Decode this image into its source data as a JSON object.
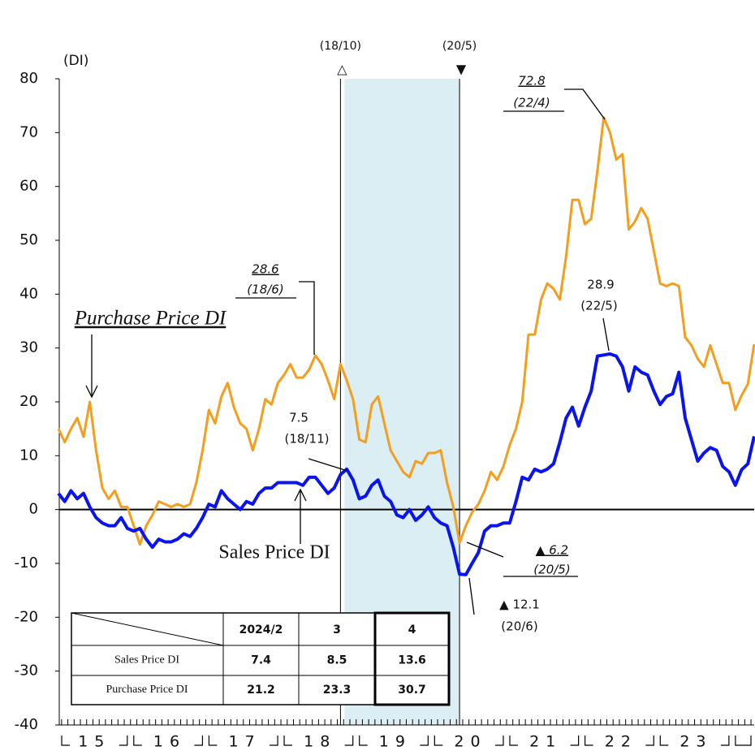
{
  "chart_data": {
    "type": "line",
    "y_unit": "(DI)",
    "categories": [
      null,
      null,
      null,
      null,
      null,
      null,
      "15",
      null,
      null,
      null,
      null,
      null,
      null,
      null,
      null,
      null,
      null,
      null,
      "16",
      null,
      null,
      null,
      null,
      null,
      null,
      null,
      null,
      null,
      null,
      null,
      "17",
      null,
      null,
      null,
      null,
      null,
      null,
      null,
      null,
      null,
      null,
      null,
      "18",
      null,
      null,
      null,
      null,
      null,
      null,
      null,
      null,
      null,
      null,
      null,
      "19",
      null,
      null,
      null,
      null,
      null,
      null,
      null,
      null,
      null,
      null,
      null,
      "20",
      null,
      null,
      null,
      null,
      null,
      null,
      null,
      null,
      null,
      null,
      null,
      "21",
      null,
      null,
      null,
      null,
      null,
      null,
      null,
      null,
      null,
      null,
      null,
      "22",
      null,
      null,
      null,
      null,
      null,
      null,
      null,
      null,
      null,
      null,
      null,
      "23",
      null,
      null,
      null,
      null,
      null,
      null,
      null,
      null,
      null
    ],
    "series": [
      {
        "name": "Purchase Price DI",
        "color": "#f59d1c",
        "values": [
          15,
          12.5,
          15,
          17,
          13.5,
          20,
          11,
          4,
          2,
          3.5,
          0.5,
          0.5,
          -3,
          -6.5,
          -3,
          -1,
          1.5,
          1,
          0.5,
          1,
          0.5,
          1,
          5,
          11,
          18.5,
          16,
          21,
          23.5,
          19,
          16,
          15,
          11,
          15,
          20.5,
          19.5,
          23.5,
          25,
          27,
          24.5,
          24.5,
          26,
          28.6,
          27,
          24,
          20.5,
          27,
          24,
          20.5,
          13,
          12.5,
          19.5,
          21,
          16,
          11,
          9,
          7,
          6,
          9,
          8.5,
          10.5,
          10.5,
          11,
          5,
          0.5,
          -6.2,
          -3,
          -0.5,
          1,
          3.5,
          7,
          5.5,
          8,
          12,
          15,
          20,
          32.5,
          32.5,
          39,
          42,
          41,
          39,
          47,
          57.5,
          57.5,
          53,
          54,
          63,
          72.8,
          70,
          65,
          66,
          52,
          53.5,
          56,
          54,
          48,
          42,
          41.5,
          42,
          41.5,
          32,
          30.5,
          28,
          26.5,
          30.5,
          27,
          23.5,
          23.5,
          18.5,
          21.2,
          23.3,
          30.7
        ]
      },
      {
        "name": "Sales Price DI",
        "color": "#0a14f0",
        "values": [
          3,
          1.5,
          3.5,
          2,
          3,
          0.5,
          -1.5,
          -2.5,
          -3,
          -3,
          -1.5,
          -3.5,
          -4,
          -3.5,
          -5.5,
          -7,
          -5.5,
          -6,
          -6,
          -5.5,
          -4.5,
          -5,
          -3.5,
          -1.5,
          1,
          0.5,
          3.5,
          2,
          1,
          0,
          1.5,
          1,
          3,
          4,
          4,
          5,
          5,
          5,
          5,
          4.5,
          6,
          6,
          4.5,
          3,
          4,
          6.5,
          7.5,
          5.5,
          2,
          2.5,
          4.5,
          5.5,
          2.5,
          1.5,
          -1,
          -1.5,
          0,
          -2,
          -1,
          0.5,
          -1.5,
          -2.5,
          -3,
          -7,
          -12,
          -12.1,
          -10,
          -8,
          -4,
          -3,
          -3,
          -2.5,
          -2.5,
          1.5,
          6,
          5.5,
          7.5,
          7,
          7.5,
          8.5,
          12.5,
          17,
          19,
          15.5,
          19,
          22,
          28.5,
          28.7,
          28.9,
          28.5,
          26.5,
          22,
          26.5,
          25.5,
          25,
          22,
          19.5,
          21,
          21.5,
          25.5,
          17,
          13,
          9,
          10.5,
          11.5,
          11,
          8,
          7,
          4.5,
          7.4,
          8.5,
          13.6
        ]
      }
    ],
    "ylim": [
      -40,
      80
    ],
    "yticks": [
      -40,
      -30,
      -20,
      -10,
      0,
      10,
      20,
      30,
      40,
      50,
      60,
      70,
      80
    ],
    "grid": false,
    "markers": [
      {
        "label": "(18/10)",
        "symbol": "△",
        "index": 45
      },
      {
        "label": "(20/5)",
        "symbol": "▼",
        "index": 64
      }
    ],
    "annotations": [
      {
        "text": "72.8"
      },
      {
        "text": "(22/4)"
      },
      {
        "text": "28.6"
      },
      {
        "text": "(18/6)"
      },
      {
        "text": "7.5"
      },
      {
        "text": "(18/11)"
      },
      {
        "text": "28.9"
      },
      {
        "text": "(22/5)"
      },
      {
        "text": "▲ 6.2"
      },
      {
        "text": "(20/5)"
      },
      {
        "text": "▲ 12.1"
      },
      {
        "text": "(20/6)"
      }
    ],
    "table": {
      "columns": [
        "2024/2",
        "3",
        "4"
      ],
      "rows": [
        [
          7.4,
          8.5,
          13.6
        ],
        [
          21.2,
          23.3,
          30.7
        ]
      ]
    }
  }
}
